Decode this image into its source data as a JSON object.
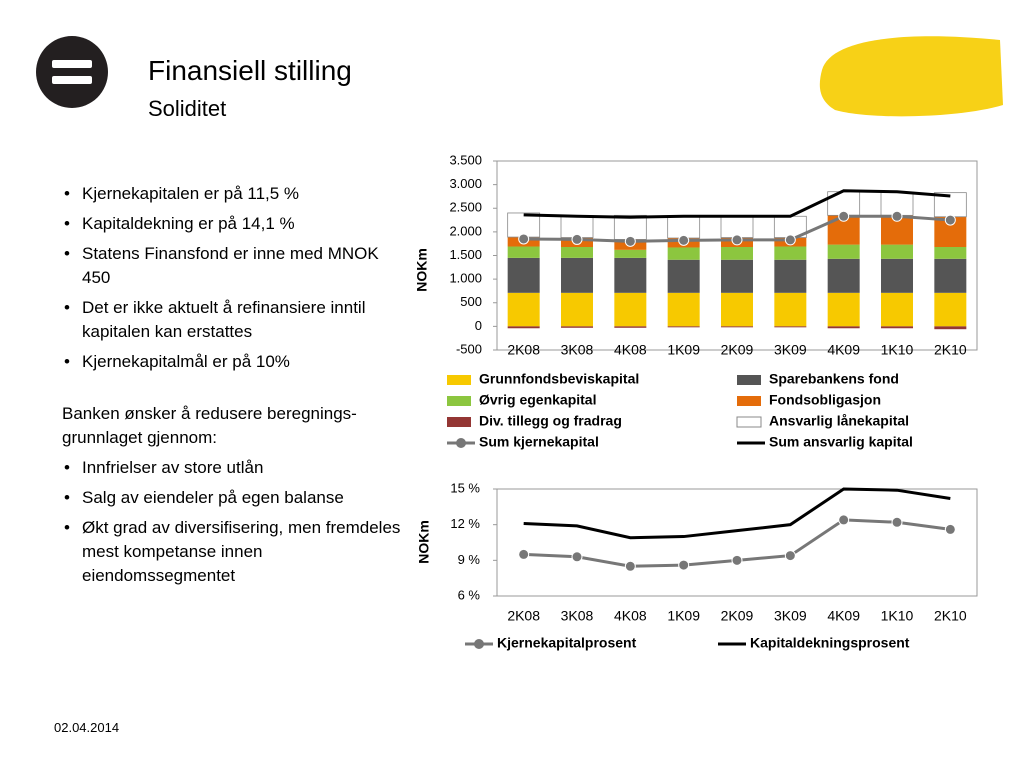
{
  "header": {
    "title": "Finansiell stilling",
    "subtitle": "Soliditet"
  },
  "bullets": [
    "Kjernekapitalen er på 11,5 %",
    "Kapitaldekning er på 14,1 %",
    "Statens Finansfond er inne med MNOK 450",
    "Det er ikke aktuelt å refinansiere inntil kapitalen kan erstattes",
    "Kjernekapitalmål er på 10%"
  ],
  "paragraph": "Banken ønsker å redusere beregnings-grunnlaget gjennom:",
  "bullets2": [
    "Innfrielser av store utlån",
    "Salg av eiendeler på egen balanse",
    "Økt grad av diversifisering, men fremdeles mest kompetanse innen eiendomssegmentet"
  ],
  "footer": {
    "date": "02.04.2014"
  },
  "chart_data": [
    {
      "type": "bar",
      "stacked": true,
      "y_label": "NOKm",
      "categories": [
        "2K08",
        "3K08",
        "4K08",
        "1K09",
        "2K09",
        "3K09",
        "4K09",
        "1K10",
        "2K10"
      ],
      "ylim": [
        -500,
        3500
      ],
      "yticks": [
        {
          "value": 3500,
          "label": "3.500"
        },
        {
          "value": 3000,
          "label": "3.000"
        },
        {
          "value": 2500,
          "label": "2.500"
        },
        {
          "value": 2000,
          "label": "2.000"
        },
        {
          "value": 1500,
          "label": "1.500"
        },
        {
          "value": 1000,
          "label": "1.000"
        },
        500,
        0,
        -500
      ],
      "grid": false,
      "legend": "bottom",
      "series": [
        {
          "name": "Grunnfondsbeviskapital",
          "type": "bar",
          "color": "#f7c900",
          "values": [
            710,
            710,
            710,
            710,
            710,
            710,
            710,
            710,
            710
          ]
        },
        {
          "name": "Sparebankens fond",
          "type": "bar",
          "color": "#555555",
          "values": [
            740,
            740,
            740,
            700,
            700,
            700,
            720,
            720,
            720
          ]
        },
        {
          "name": "Øvrig egenkapital",
          "type": "bar",
          "color": "#8cc63f",
          "values": [
            240,
            230,
            170,
            260,
            270,
            280,
            300,
            300,
            250
          ]
        },
        {
          "name": "Fondsobligasjon",
          "type": "bar",
          "color": "#e46c0a",
          "values": [
            200,
            200,
            220,
            200,
            200,
            190,
            620,
            620,
            640
          ]
        },
        {
          "name": "Div. tillegg og fradrag",
          "type": "bar",
          "color": "#943634",
          "values": [
            -40,
            -30,
            -30,
            -20,
            -20,
            -20,
            -40,
            -40,
            -60
          ]
        },
        {
          "name": "Ansvarlig lånekapital",
          "type": "bar",
          "color": "#ffffff",
          "values": [
            510,
            460,
            510,
            470,
            460,
            450,
            500,
            490,
            510
          ]
        },
        {
          "name": "Sum kjernekapital",
          "type": "line",
          "marker": true,
          "color": "#777777",
          "values": [
            1850,
            1840,
            1800,
            1820,
            1830,
            1830,
            2330,
            2330,
            2250
          ]
        },
        {
          "name": "Sum ansvarlig kapital",
          "type": "line",
          "marker": false,
          "color": "#000000",
          "values": [
            2360,
            2330,
            2310,
            2330,
            2330,
            2330,
            2870,
            2850,
            2760
          ]
        }
      ]
    },
    {
      "type": "line",
      "y_label": "NOKm",
      "categories": [
        "2K08",
        "3K08",
        "4K08",
        "1K09",
        "2K09",
        "3K09",
        "4K09",
        "1K10",
        "2K10"
      ],
      "ylim": [
        6,
        15
      ],
      "yticks": [
        {
          "value": 15,
          "label": "15 %"
        },
        {
          "value": 12,
          "label": "12 %"
        },
        {
          "value": 9,
          "label": "9 %"
        },
        {
          "value": 6,
          "label": "6 %"
        }
      ],
      "grid": false,
      "legend": "bottom",
      "series": [
        {
          "name": "Kjernekapitalprosent",
          "type": "line",
          "marker": true,
          "color": "#777777",
          "values": [
            9.5,
            9.3,
            8.5,
            8.6,
            9.0,
            9.4,
            12.4,
            12.2,
            11.6
          ]
        },
        {
          "name": "Kapitaldekningsprosent",
          "type": "line",
          "marker": false,
          "color": "#000000",
          "values": [
            12.1,
            11.9,
            10.9,
            11.0,
            11.5,
            12.0,
            15.0,
            14.9,
            14.2
          ]
        }
      ]
    }
  ]
}
